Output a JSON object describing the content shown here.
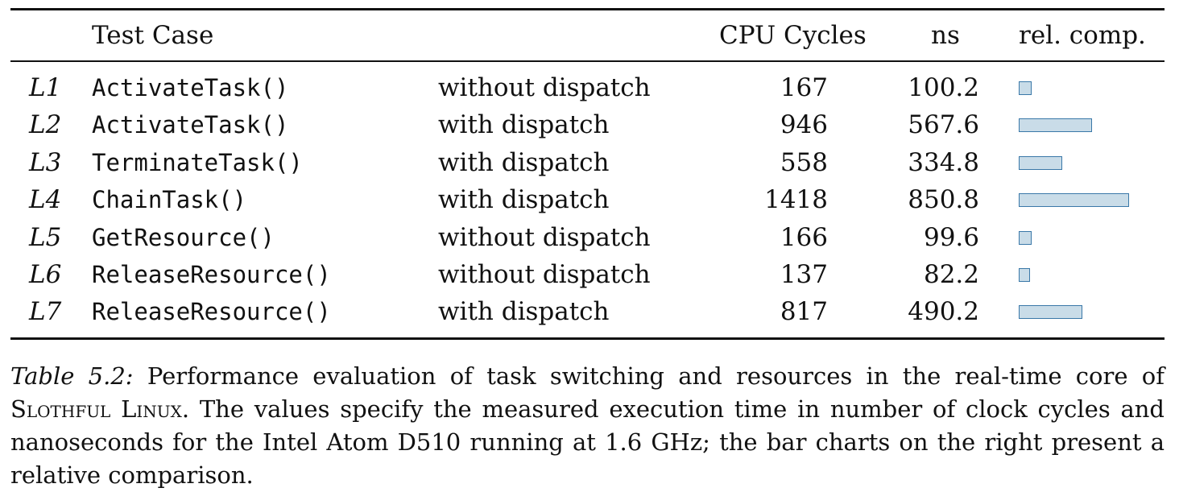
{
  "table": {
    "headers": {
      "test_case": "Test Case",
      "cpu_cycles": "CPU Cycles",
      "ns": "ns",
      "rel_comp": "rel. comp."
    },
    "rows": [
      {
        "id": "L1",
        "function": "ActivateTask()",
        "variant": "without dispatch",
        "cycles": "167",
        "ns": "100.2"
      },
      {
        "id": "L2",
        "function": "ActivateTask()",
        "variant": "with dispatch",
        "cycles": "946",
        "ns": "567.6"
      },
      {
        "id": "L3",
        "function": "TerminateTask()",
        "variant": "with dispatch",
        "cycles": "558",
        "ns": "334.8"
      },
      {
        "id": "L4",
        "function": "ChainTask()",
        "variant": "with dispatch",
        "cycles": "1418",
        "ns": "850.8"
      },
      {
        "id": "L5",
        "function": "GetResource()",
        "variant": "without dispatch",
        "cycles": "166",
        "ns": "99.6"
      },
      {
        "id": "L6",
        "function": "ReleaseResource()",
        "variant": "without dispatch",
        "cycles": "137",
        "ns": "82.2"
      },
      {
        "id": "L7",
        "function": "ReleaseResource()",
        "variant": "with dispatch",
        "cycles": "817",
        "ns": "490.2"
      }
    ]
  },
  "caption": {
    "label": "Table 5.2:",
    "text_before": "Performance evaluation of task switching and resources in the real-time core of",
    "name": "Slothful Linux",
    "text_after": ". The values specify the measured execution time in number of clock cycles and nanoseconds for the Intel Atom D510 running at 1.6 GHz; the bar charts on the right present a relative comparison."
  },
  "colors": {
    "bar_fill": "#c9dce8",
    "bar_stroke": "#3a78a8"
  }
}
